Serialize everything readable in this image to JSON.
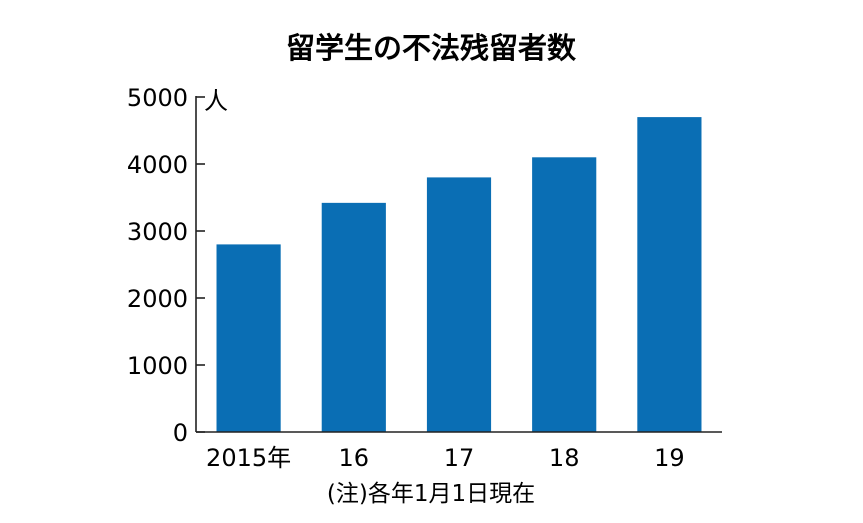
{
  "chart_data": {
    "type": "bar",
    "title": "留学生の不法残留者数",
    "unit_label": "人",
    "categories": [
      "2015年",
      "16",
      "17",
      "18",
      "19"
    ],
    "values": [
      2800,
      3420,
      3800,
      4100,
      4700
    ],
    "ylim": [
      0,
      5000
    ],
    "yticks": [
      "0",
      "1000",
      "2000",
      "3000",
      "4000",
      "5000"
    ],
    "bar_color": "#0a6eb4",
    "grid": false,
    "note": "(注)各年1月1日現在"
  }
}
